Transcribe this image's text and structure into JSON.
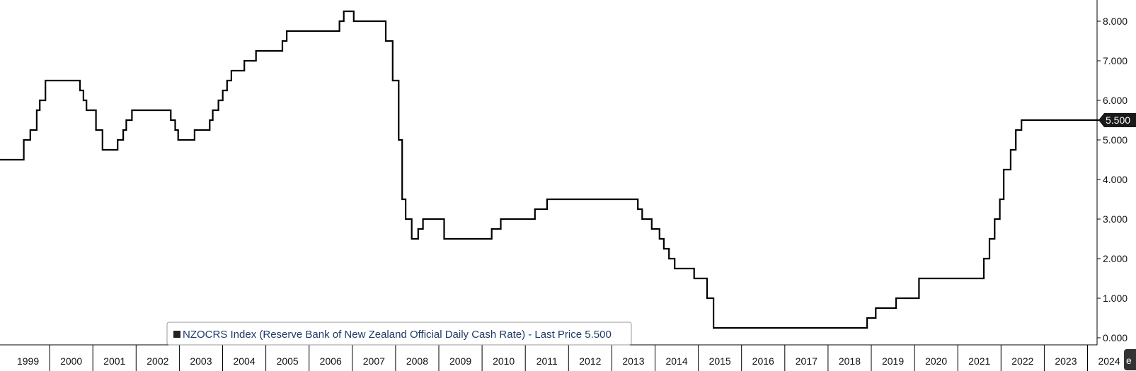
{
  "chart_data": {
    "type": "line",
    "step": true,
    "title": "",
    "xlabel": "",
    "ylabel": "",
    "ylim": [
      0,
      8.5
    ],
    "yticks": [
      0,
      1,
      2,
      3,
      4,
      5,
      6,
      7,
      8
    ],
    "ytick_labels": [
      "0.000",
      "1.000",
      "2.000",
      "3.000",
      "4.000",
      "5.000",
      "6.000",
      "7.000",
      "8.000"
    ],
    "xlim": [
      1999.0,
      2024.75
    ],
    "xtick_labels": [
      "1999",
      "2000",
      "2001",
      "2002",
      "2003",
      "2004",
      "2005",
      "2006",
      "2007",
      "2008",
      "2009",
      "2010",
      "2011",
      "2012",
      "2013",
      "2014",
      "2015",
      "2016",
      "2017",
      "2018",
      "2019",
      "2020",
      "2021",
      "2022",
      "2023",
      "2024"
    ],
    "grid": false,
    "y_axis_side": "right",
    "legend": {
      "placement": "bottom-left",
      "text": "NZOCRS Index (Reserve Bank of New Zealand Official Daily Cash Rate) - Last Price 5.500"
    },
    "last_price_label": "5.500",
    "last_price": 5.5,
    "series": [
      {
        "name": "NZOCRS Index (Reserve Bank of New Zealand Official Daily Cash Rate)",
        "color": "#000000",
        "x": [
          1999.0,
          1999.55,
          1999.7,
          1999.85,
          1999.92,
          2000.05,
          2000.85,
          2000.93,
          2001.0,
          2001.22,
          2001.37,
          2001.72,
          2001.85,
          2001.92,
          2002.05,
          2002.18,
          2002.95,
          2003.05,
          2003.12,
          2003.5,
          2003.85,
          2003.92,
          2004.05,
          2004.15,
          2004.25,
          2004.35,
          2004.65,
          2004.92,
          2005.53,
          2005.63,
          2006.85,
          2006.95,
          2007.08,
          2007.18,
          2007.92,
          2008.08,
          2008.22,
          2008.3,
          2008.38,
          2008.52,
          2008.57,
          2008.67,
          2008.78,
          2009.27,
          2009.37,
          2009.92,
          2010.37,
          2010.58,
          2011.37,
          2011.65,
          2013.63,
          2013.75,
          2013.85,
          2014.07,
          2014.25,
          2014.35,
          2014.47,
          2014.6,
          2014.78,
          2015.05,
          2015.35,
          2015.5,
          2016.0,
          2019.05,
          2019.25,
          2019.72,
          2020.25,
          2021.75,
          2021.88,
          2022.0,
          2022.12,
          2022.21,
          2022.37,
          2022.49,
          2022.62,
          2022.73,
          2022.98,
          2023.18,
          2024.55
        ],
        "values": [
          4.5,
          5.0,
          5.25,
          5.75,
          6.0,
          6.5,
          6.25,
          6.0,
          5.75,
          5.25,
          4.75,
          5.0,
          5.25,
          5.5,
          5.75,
          5.75,
          5.5,
          5.25,
          5.0,
          5.25,
          5.5,
          5.75,
          6.0,
          6.25,
          6.5,
          6.75,
          7.0,
          7.25,
          7.5,
          7.75,
          8.0,
          8.25,
          8.25,
          8.0,
          7.5,
          6.5,
          5.0,
          3.5,
          3.0,
          2.5,
          2.5,
          2.75,
          3.0,
          2.5,
          2.5,
          2.5,
          2.75,
          3.0,
          3.25,
          3.5,
          3.5,
          3.25,
          3.0,
          2.75,
          2.5,
          2.25,
          2.0,
          1.75,
          1.75,
          1.5,
          1.0,
          0.25,
          0.25,
          0.5,
          0.75,
          1.0,
          1.5,
          2.0,
          2.5,
          3.0,
          3.5,
          4.25,
          4.75,
          5.25,
          5.5,
          5.5,
          5.5,
          5.5,
          5.5
        ]
      }
    ]
  }
}
